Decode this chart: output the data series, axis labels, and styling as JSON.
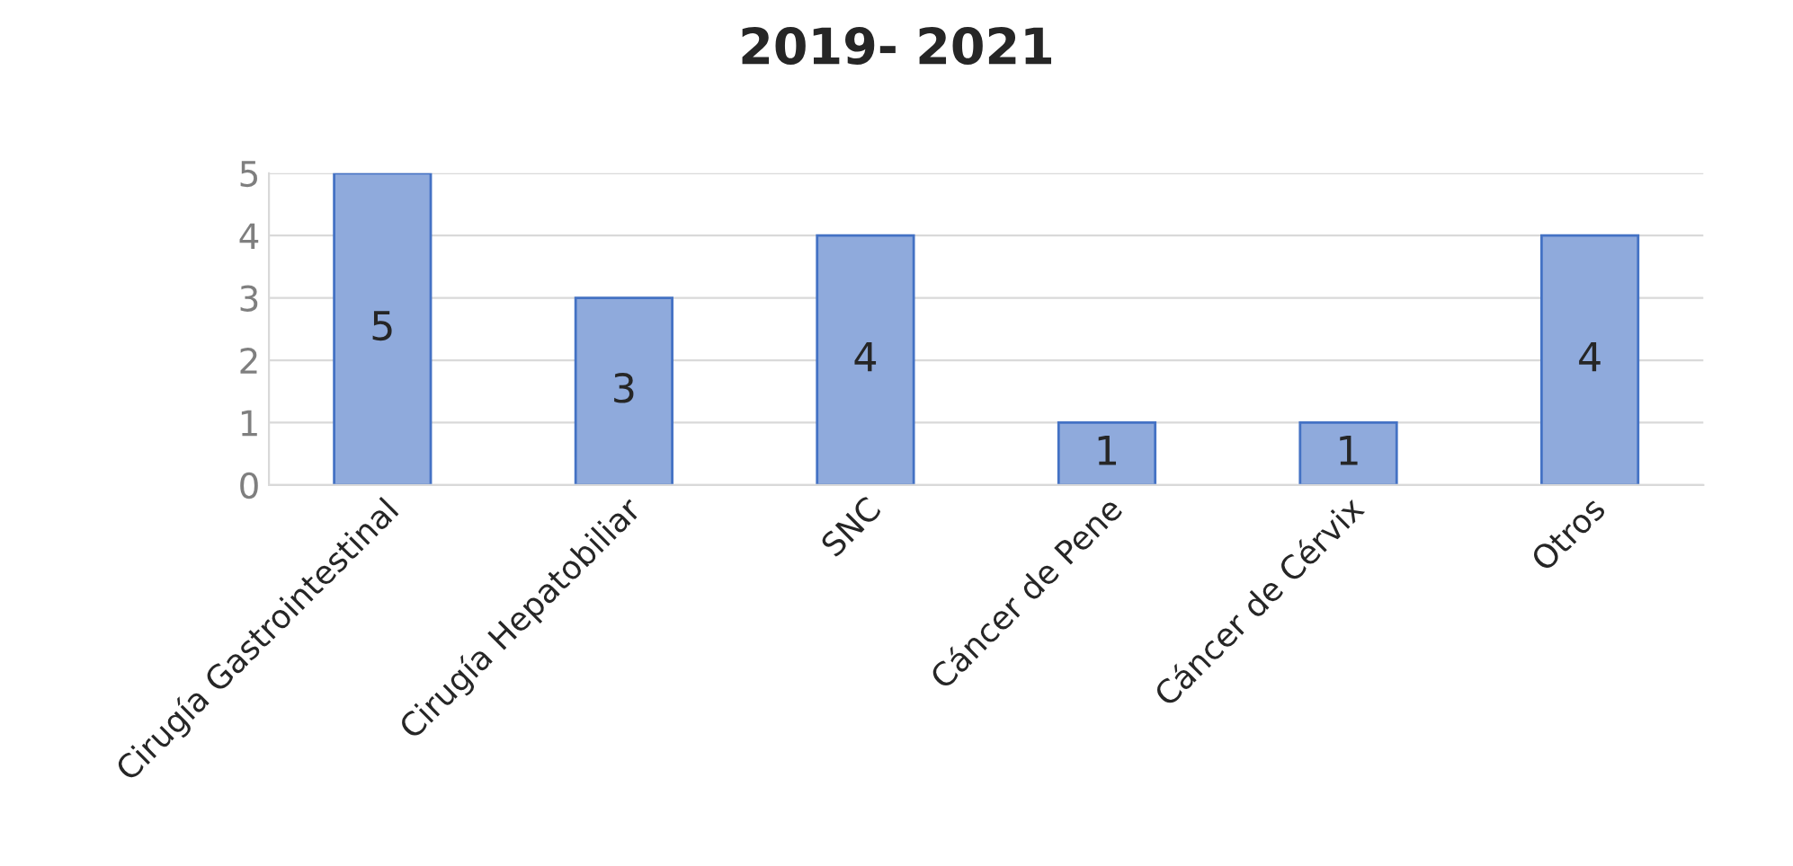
{
  "chart_data": {
    "type": "bar",
    "title": "2019- 2021",
    "categories": [
      "Cirugía Gastrointestinal",
      "Cirugía Hepatobiliar",
      "SNC",
      "Cáncer de Pene",
      "Cáncer de Cérvix",
      "Otros"
    ],
    "values": [
      5,
      3,
      4,
      1,
      1,
      4
    ],
    "color": "#8faadc",
    "ylim": [
      0,
      5
    ],
    "yticks": [
      0,
      1,
      2,
      3,
      4,
      5
    ],
    "grid": "y",
    "data_labels": true
  }
}
